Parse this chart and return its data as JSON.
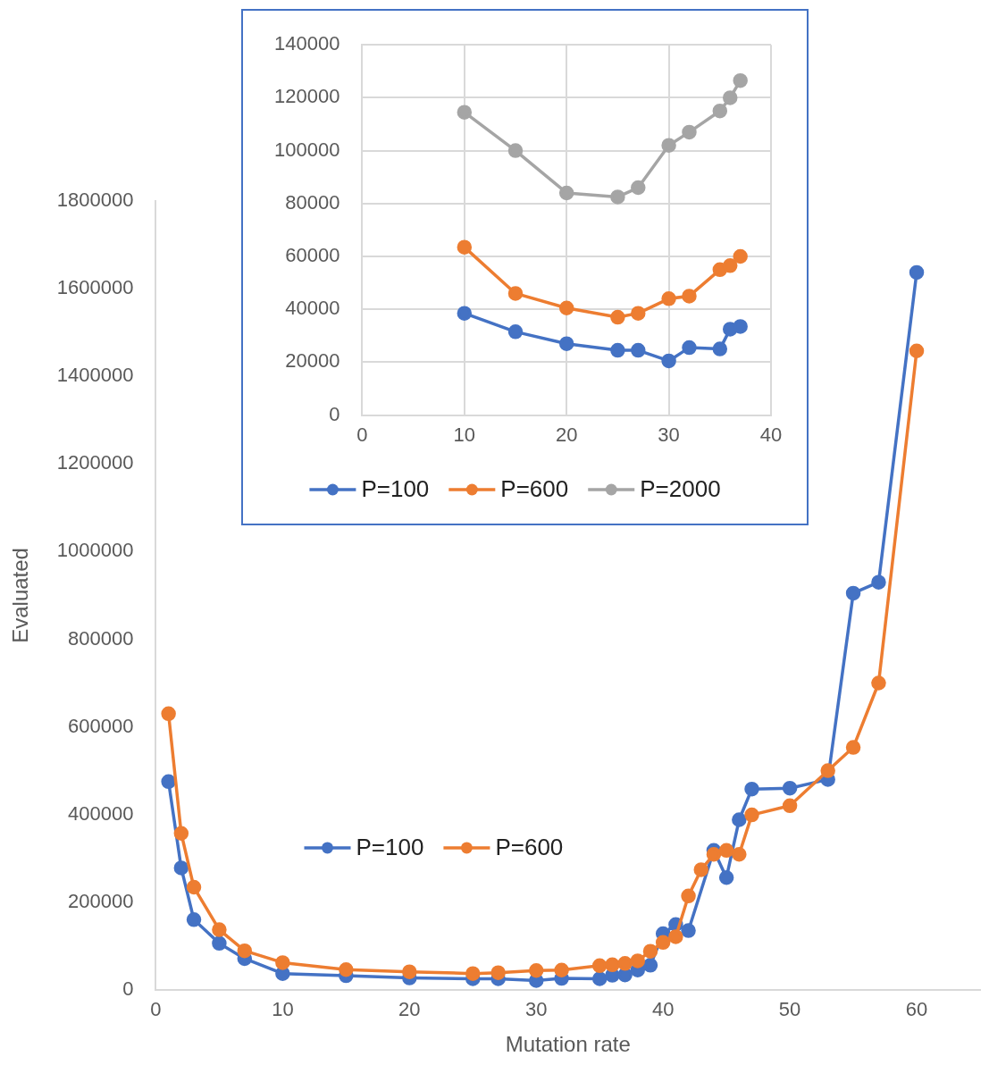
{
  "chart_data": [
    {
      "type": "line",
      "xlabel": "Mutation rate",
      "ylabel": "Evaluated",
      "xlim": [
        0,
        65
      ],
      "xticks": [
        0,
        10,
        20,
        30,
        40,
        50,
        60
      ],
      "ylim": [
        0,
        1800000
      ],
      "yticks": [
        0,
        200000,
        400000,
        600000,
        800000,
        1000000,
        1200000,
        1400000,
        1600000,
        1800000
      ],
      "grid": false,
      "legend": "bottom left",
      "marker": "circle",
      "line_style": "solid",
      "series": [
        {
          "name": "P=100",
          "color": "#4472c4",
          "x": [
            1,
            2,
            3,
            5,
            7,
            10,
            15,
            20,
            25,
            27,
            30,
            32,
            35,
            36,
            37,
            38,
            39,
            40,
            41,
            42,
            44,
            45,
            46,
            47,
            50,
            53,
            55,
            57,
            60
          ],
          "values": [
            475000,
            278000,
            160000,
            106000,
            71000,
            37000,
            32000,
            27000,
            25000,
            25000,
            21000,
            26000,
            25000,
            33000,
            34000,
            45000,
            56000,
            128000,
            149000,
            135000,
            318000,
            256000,
            388000,
            458000,
            460000,
            480000,
            905000,
            930000,
            1637000
          ]
        },
        {
          "name": "P=600",
          "color": "#ed7d31",
          "x": [
            1,
            2,
            3,
            5,
            7,
            10,
            15,
            20,
            25,
            27,
            30,
            32,
            35,
            36,
            37,
            38,
            39,
            40,
            41,
            42,
            43,
            44,
            45,
            46,
            47,
            50,
            53,
            55,
            57,
            60
          ],
          "values": [
            630000,
            357000,
            234000,
            137000,
            89000,
            62000,
            46000,
            41000,
            37000,
            39000,
            44000,
            45000,
            55000,
            57000,
            60000,
            66000,
            88000,
            108000,
            121000,
            214000,
            274000,
            309000,
            318000,
            309000,
            399000,
            420000,
            500000,
            553000,
            700000,
            1458000
          ]
        }
      ]
    },
    {
      "type": "line",
      "xlim": [
        0,
        40
      ],
      "xticks": [
        0,
        10,
        20,
        30,
        40
      ],
      "ylim": [
        0,
        140000
      ],
      "yticks": [
        0,
        20000,
        40000,
        60000,
        80000,
        100000,
        120000,
        140000
      ],
      "grid": true,
      "legend": "bottom",
      "marker": "circle",
      "line_style": "solid",
      "series": [
        {
          "name": "P=100",
          "color": "#4472c4",
          "x": [
            10,
            15,
            20,
            25,
            27,
            30,
            32,
            35,
            36,
            37
          ],
          "values": [
            38500,
            31500,
            27000,
            24500,
            24500,
            20500,
            25500,
            25000,
            32500,
            33500
          ]
        },
        {
          "name": "P=600",
          "color": "#ed7d31",
          "x": [
            10,
            15,
            20,
            25,
            27,
            30,
            32,
            35,
            36,
            37
          ],
          "values": [
            63500,
            46000,
            40500,
            37000,
            38500,
            44000,
            45000,
            55000,
            56500,
            60000
          ]
        },
        {
          "name": "P=2000",
          "color": "#a5a5a5",
          "x": [
            10,
            15,
            20,
            25,
            27,
            30,
            32,
            35,
            36,
            37
          ],
          "values": [
            114500,
            100000,
            84000,
            82500,
            86000,
            102000,
            107000,
            115000,
            120000,
            126500
          ]
        }
      ]
    }
  ]
}
